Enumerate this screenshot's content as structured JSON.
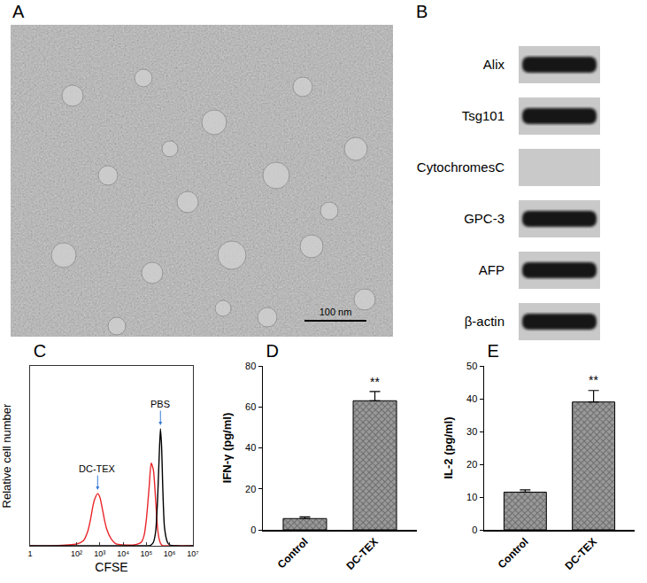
{
  "panels": [
    {
      "label": "A",
      "type": "image",
      "scale_bar": "100 nm"
    },
    {
      "label": "B",
      "type": "blot",
      "rows": [
        {
          "name": "Alix",
          "detected": true
        },
        {
          "name": "Tsg101",
          "detected": true
        },
        {
          "name": "CytochromesC",
          "detected": false
        },
        {
          "name": "GPC-3",
          "detected": true
        },
        {
          "name": "AFP",
          "detected": true
        },
        {
          "name": "β-actin",
          "detected": true
        }
      ]
    }
  ],
  "chart_data": [
    {
      "title": "C",
      "type": "line",
      "xlabel": "CFSE",
      "ylabel": "Relative cell number",
      "log": "x",
      "xlim": [
        1,
        10000000
      ],
      "xticks": [
        1,
        {
          "value": 100,
          "label": "10²"
        },
        {
          "value": 1000,
          "label": "10³"
        },
        {
          "value": 10000,
          "label": "10⁴"
        },
        {
          "value": 100000,
          "label": "10⁵"
        },
        {
          "value": 1000000,
          "label": "10⁶"
        },
        {
          "value": 10000000,
          "label": "10⁷"
        }
      ],
      "ylim": [
        0,
        100
      ],
      "yticks": [],
      "tick_labels": "x",
      "x": [
        1,
        10,
        100,
        200,
        300,
        400,
        500,
        600,
        800,
        1000,
        1300,
        1600,
        2000,
        3000,
        5000,
        10000,
        30000,
        60000,
        80000,
        100000,
        130000,
        160000,
        200000,
        250000,
        300000,
        350000,
        400000,
        450000,
        500000,
        600000,
        800000,
        1000000,
        2000000,
        10000000
      ],
      "series": [
        {
          "name": "DC-TEX",
          "color": "#e8262a",
          "line_style": "solid",
          "values": [
            0,
            0,
            1,
            3,
            8,
            15,
            22,
            26,
            29,
            27,
            20,
            14,
            9,
            4,
            1,
            0.5,
            0.5,
            2,
            6,
            15,
            32,
            46,
            42,
            25,
            10,
            4,
            1.5,
            0.5,
            0,
            0,
            0,
            0,
            0,
            0
          ]
        },
        {
          "name": "PBS",
          "color": "#000000",
          "line_style": "solid",
          "values": [
            0,
            0,
            0,
            0,
            0,
            0,
            0,
            0,
            0,
            0,
            0,
            0,
            0,
            0,
            0,
            0,
            0,
            0,
            0,
            0,
            0,
            0.5,
            2,
            8,
            25,
            48,
            65,
            55,
            34,
            10,
            2,
            0.5,
            0,
            0
          ]
        }
      ],
      "annotations": [
        {
          "text": "DC-TEX",
          "x": 800,
          "y": 31
        },
        {
          "text": "PBS",
          "x": 400000,
          "y": 67
        }
      ]
    },
    {
      "title": "D",
      "type": "bar",
      "ylabel": "IFN-γ (pg/ml)",
      "categories": [
        "Control",
        "DC-TEX"
      ],
      "values": [
        5.5,
        63
      ],
      "errors": [
        0.8,
        4.5
      ],
      "color": "#9a9a9a",
      "marker": "checkered",
      "ylim": [
        0,
        80
      ],
      "yticks": [
        0,
        20,
        40,
        60,
        80
      ],
      "annotations": [
        {
          "text": "**",
          "x": "DC-TEX",
          "y": 68
        }
      ]
    },
    {
      "title": "E",
      "type": "bar",
      "ylabel": "IL-2 (pg/ml)",
      "categories": [
        "Control",
        "DC-TEX"
      ],
      "values": [
        11.5,
        39
      ],
      "errors": [
        0.7,
        3.5
      ],
      "color": "#9a9a9a",
      "marker": "checkered",
      "ylim": [
        0,
        50
      ],
      "yticks": [
        0,
        10,
        20,
        30,
        40,
        50
      ],
      "annotations": [
        {
          "text": "**",
          "x": "DC-TEX",
          "y": 43
        }
      ]
    }
  ]
}
